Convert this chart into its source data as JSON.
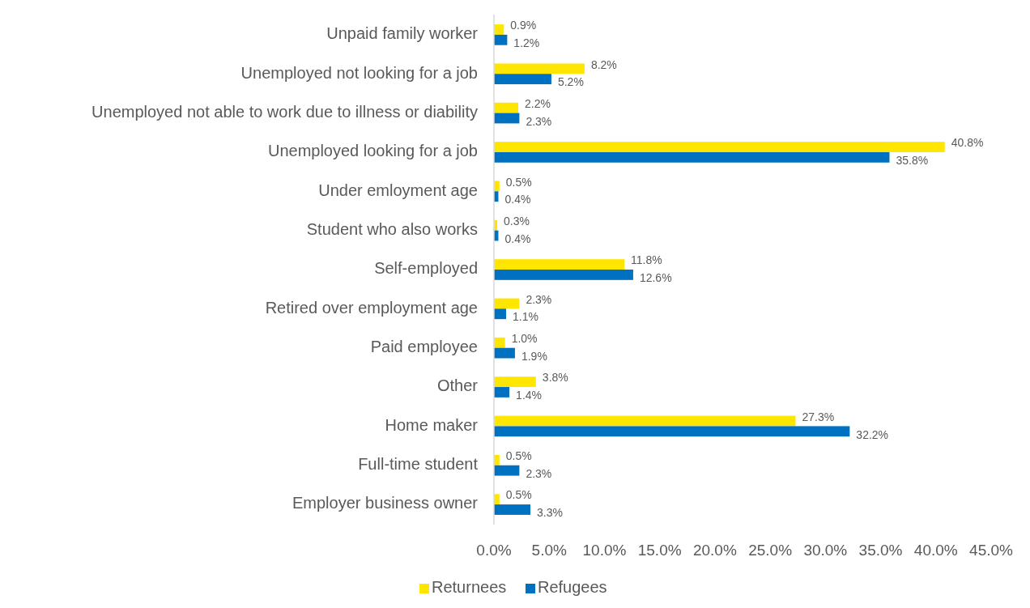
{
  "chart_data": {
    "type": "bar",
    "orientation": "horizontal",
    "categories": [
      "Unpaid family worker",
      "Unemployed not looking for a job",
      "Unemployed not able to work due to illness or diability",
      "Unemployed looking for a job",
      "Under emloyment age",
      "Student who also works",
      "Self-employed",
      "Retired over employment age",
      "Paid employee",
      "Other",
      "Home maker",
      "Full-time student",
      "Employer business owner"
    ],
    "series": [
      {
        "name": "Returnees",
        "color": "#ffe600",
        "values": [
          0.9,
          8.2,
          2.2,
          40.8,
          0.5,
          0.3,
          11.8,
          2.3,
          1.0,
          3.8,
          27.3,
          0.5,
          0.5
        ],
        "value_labels": [
          "0.9%",
          "8.2%",
          "2.2%",
          "40.8%",
          "0.5%",
          "0.3%",
          "11.8%",
          "2.3%",
          "1.0%",
          "3.8%",
          "27.3%",
          "0.5%",
          "0.5%"
        ]
      },
      {
        "name": "Refugees",
        "color": "#0070c0",
        "values": [
          1.2,
          5.2,
          2.3,
          35.8,
          0.4,
          0.4,
          12.6,
          1.1,
          1.9,
          1.4,
          32.2,
          2.3,
          3.3
        ],
        "value_labels": [
          "1.2%",
          "5.2%",
          "2.3%",
          "35.8%",
          "0.4%",
          "0.4%",
          "12.6%",
          "1.1%",
          "1.9%",
          "1.4%",
          "32.2%",
          "2.3%",
          "3.3%"
        ]
      }
    ],
    "xlim": [
      0,
      45
    ],
    "xticks": [
      {
        "value": 0,
        "label": "0.0%"
      },
      {
        "value": 5,
        "label": "5.0%"
      },
      {
        "value": 10,
        "label": "10.0%"
      },
      {
        "value": 15,
        "label": "15.0%"
      },
      {
        "value": 20,
        "label": "20.0%"
      },
      {
        "value": 25,
        "label": "25.0%"
      },
      {
        "value": 30,
        "label": "30.0%"
      },
      {
        "value": 35,
        "label": "35.0%"
      },
      {
        "value": 40,
        "label": "40.0%"
      },
      {
        "value": 45,
        "label": "45.0%"
      }
    ],
    "grid": false,
    "legend": "bottom"
  }
}
